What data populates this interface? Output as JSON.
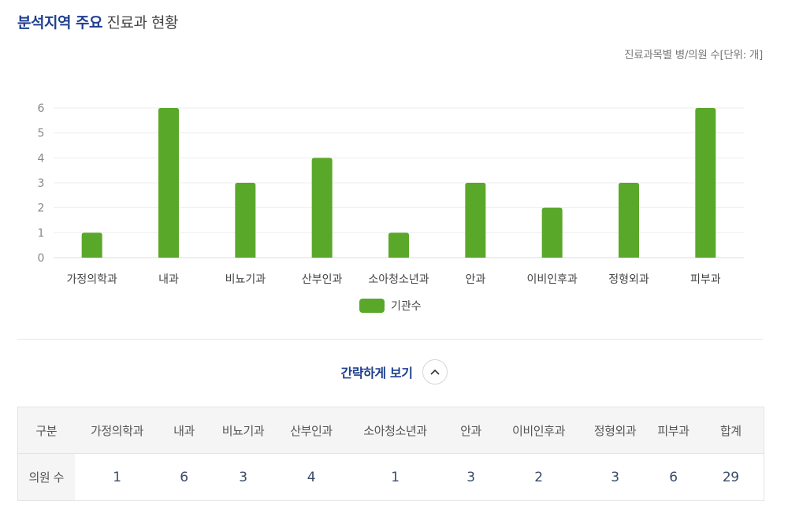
{
  "header": {
    "title_highlight": "분석지역 주요",
    "title_rest": "진료과 현황",
    "unit_note": "진료과목별 병/의원 수[단위: 개]"
  },
  "chart_data": {
    "type": "bar",
    "categories": [
      "가정의학과",
      "내과",
      "비뇨기과",
      "산부인과",
      "소아청소년과",
      "안과",
      "이비인후과",
      "정형외과",
      "피부과"
    ],
    "series": [
      {
        "name": "기관수",
        "values": [
          1,
          6,
          3,
          4,
          1,
          3,
          2,
          3,
          6
        ]
      }
    ],
    "ylim": [
      0,
      6
    ],
    "yticks": [
      0,
      1,
      2,
      3,
      4,
      5,
      6
    ],
    "grid": true,
    "legend": "bottom-center",
    "colors": {
      "bar": "#5aa82a",
      "grid": "#eeeeee",
      "axis": "#dddddd",
      "tick_text": "#888888",
      "label_text": "#444444"
    }
  },
  "toggle": {
    "label": "간략하게 보기",
    "icon": "chevron-up-icon"
  },
  "table": {
    "headers": [
      "구분",
      "가정의학과",
      "내과",
      "비뇨기과",
      "산부인과",
      "소아청소년과",
      "안과",
      "이비인후과",
      "정형외과",
      "피부과",
      "합계"
    ],
    "row": {
      "label": "의원 수",
      "values": [
        "1",
        "6",
        "3",
        "4",
        "1",
        "3",
        "2",
        "3",
        "6",
        "29"
      ]
    }
  },
  "colors": {
    "accent": "#1f3f8f"
  }
}
